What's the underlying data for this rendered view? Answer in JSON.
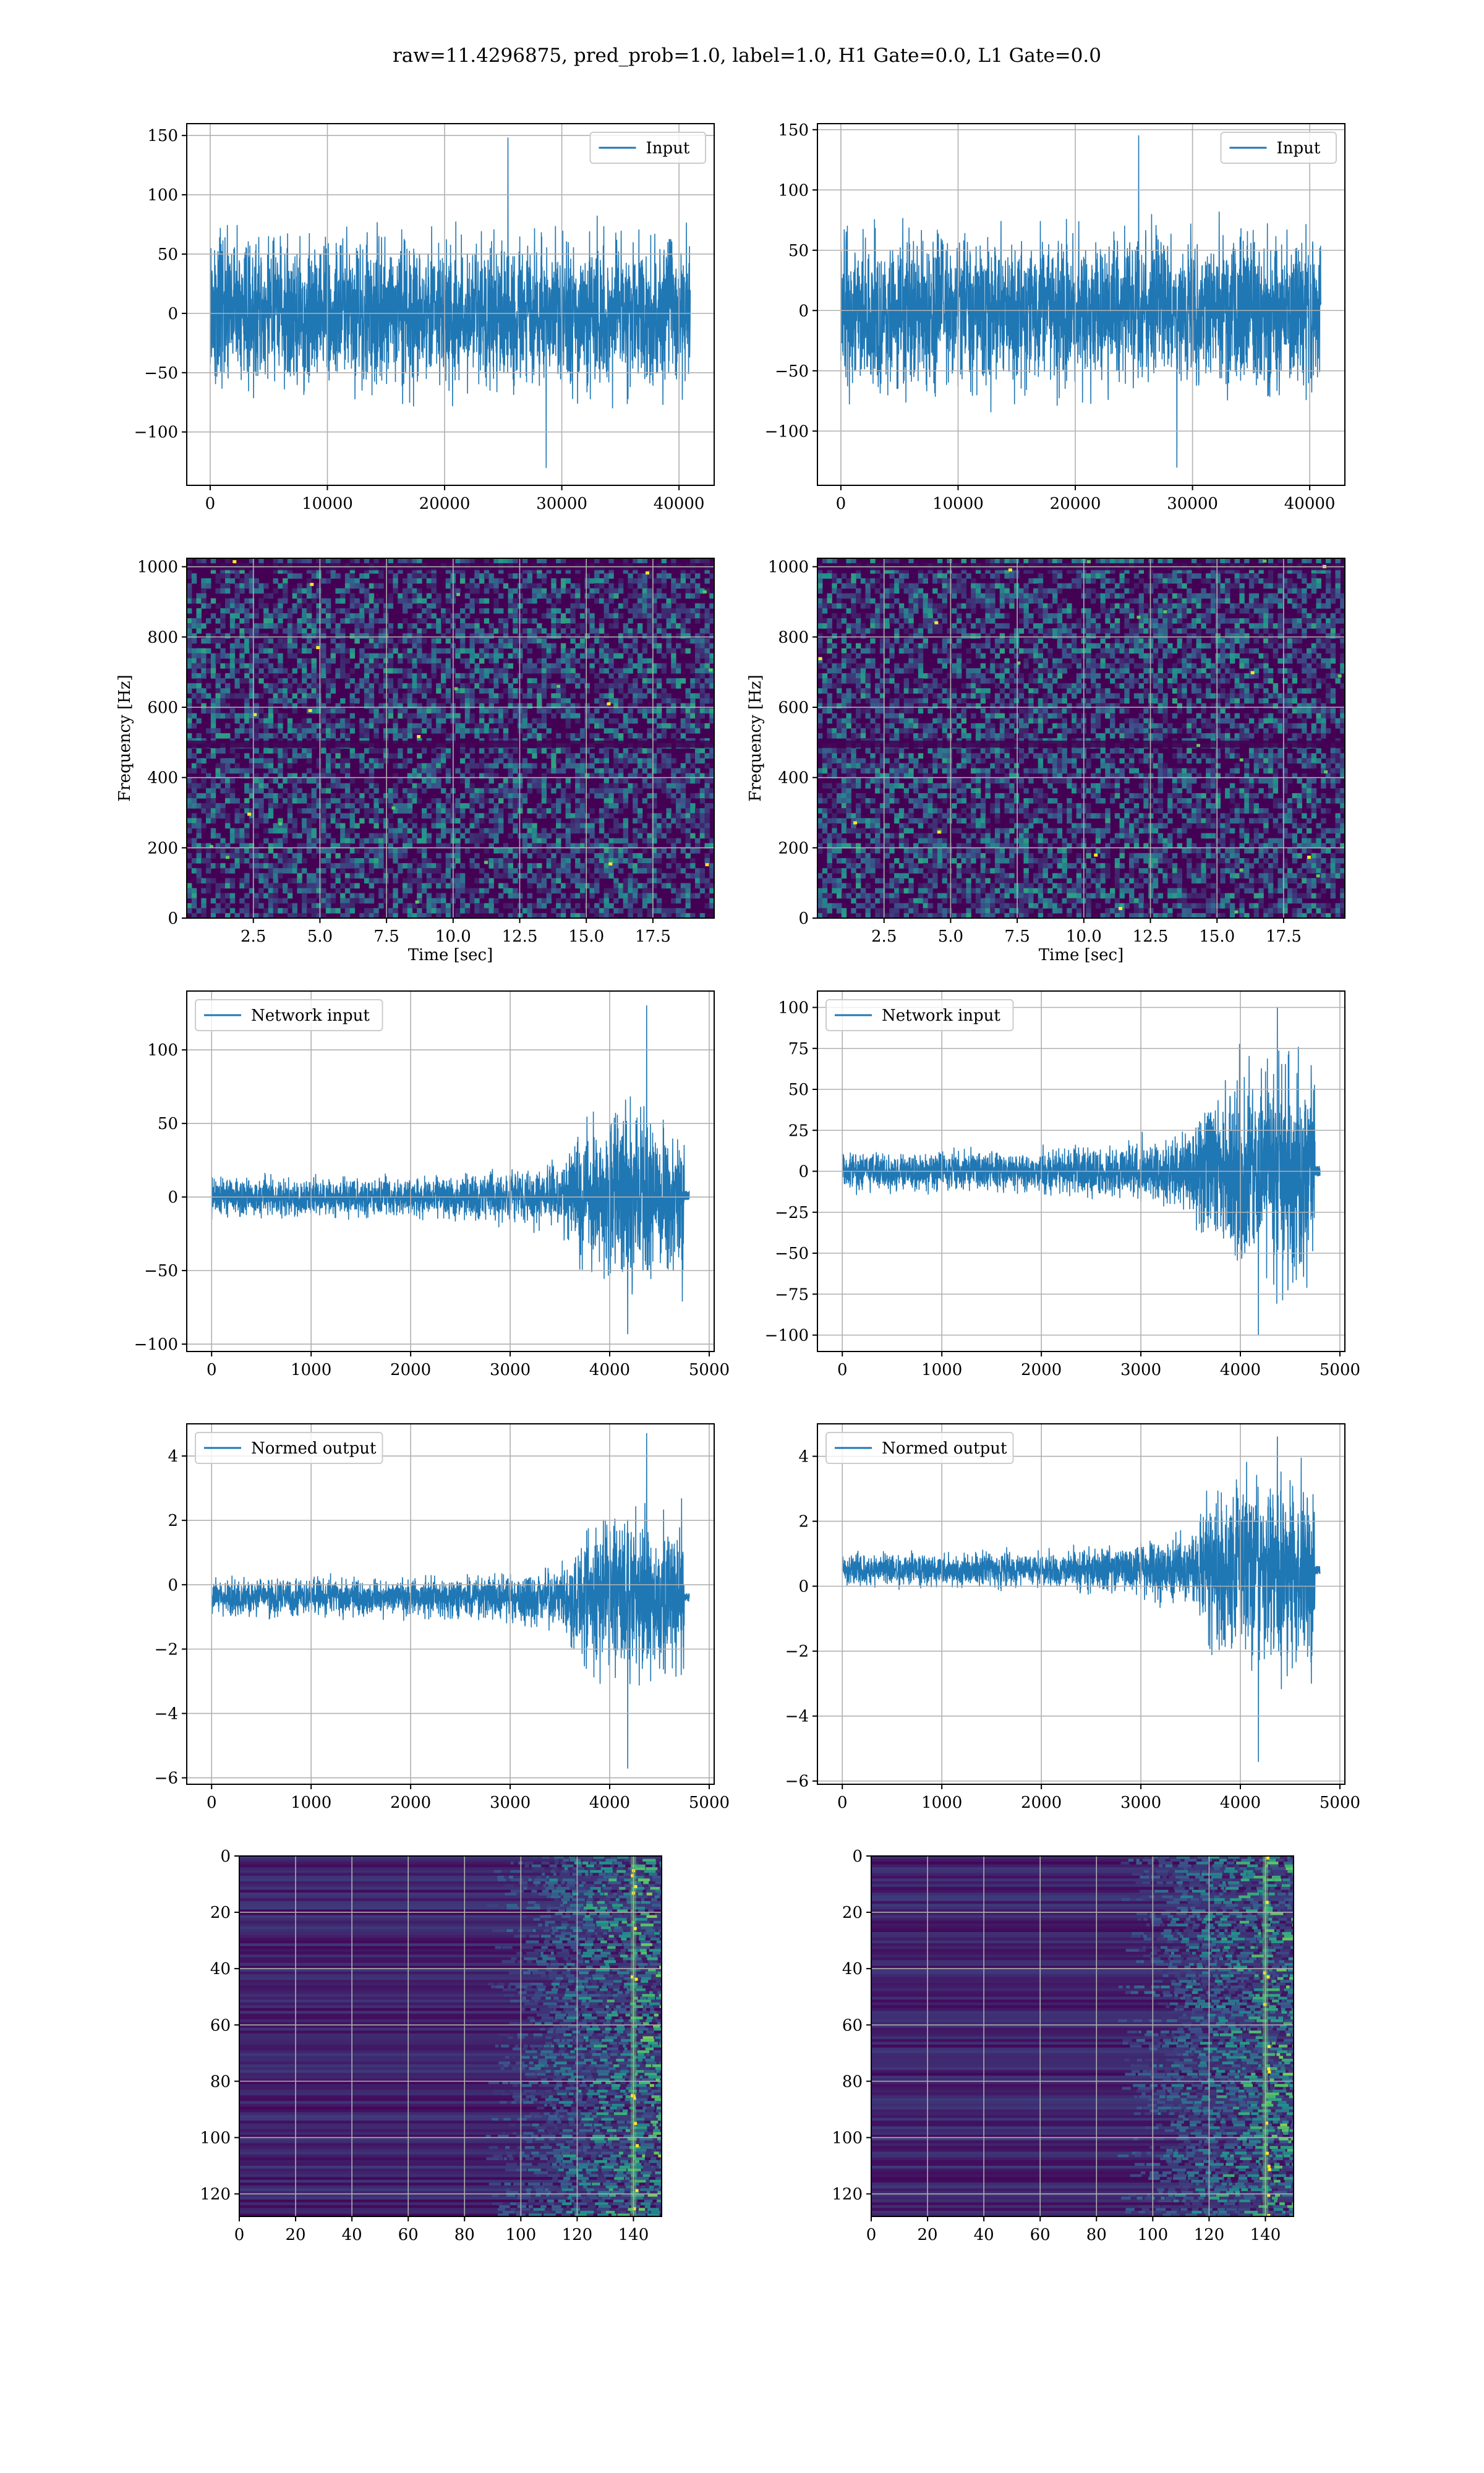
{
  "figure": {
    "suptitle": "raw=11.4296875, pred_prob=1.0, label=1.0, H1 Gate=0.0, L1 Gate=0.0"
  },
  "colors": {
    "line": "#1f77b4",
    "viridis_dark": "#440154",
    "viridis_mid": "#21918c",
    "viridis_light": "#5ec962",
    "viridis_bright": "#fde725",
    "grid": "#b0b0b0"
  },
  "chart_data": [
    {
      "id": "input-h1",
      "type": "line",
      "legend": "Input",
      "legend_loc": "upper-right",
      "grid": true,
      "xlim": [
        -2000,
        43000
      ],
      "ylim": [
        -145,
        160
      ],
      "xticks": [
        0,
        10000,
        20000,
        30000,
        40000
      ],
      "xtick_labels": [
        "0",
        "10000",
        "20000",
        "30000",
        "40000"
      ],
      "yticks": [
        -100,
        -50,
        0,
        50,
        100,
        150
      ],
      "ytick_labels": [
        "−100",
        "−50",
        "0",
        "50",
        "100",
        "150"
      ],
      "xlabel": "",
      "ylabel": "",
      "signal": {
        "x_range": [
          0,
          40960
        ],
        "envelope": [
          [
            0,
            85
          ],
          [
            40960,
            85
          ]
        ],
        "center": [
          [
            0,
            0
          ],
          [
            40960,
            0
          ]
        ],
        "peak_max": 148,
        "peak_min": -130
      }
    },
    {
      "id": "input-l1",
      "type": "line",
      "legend": "Input",
      "legend_loc": "upper-right",
      "grid": true,
      "xlim": [
        -2000,
        43000
      ],
      "ylim": [
        -145,
        155
      ],
      "xticks": [
        0,
        10000,
        20000,
        30000,
        40000
      ],
      "xtick_labels": [
        "0",
        "10000",
        "20000",
        "30000",
        "40000"
      ],
      "yticks": [
        -100,
        -50,
        0,
        50,
        100,
        150
      ],
      "ytick_labels": [
        "−100",
        "−50",
        "0",
        "50",
        "100",
        "150"
      ],
      "xlabel": "",
      "ylabel": "",
      "signal": {
        "x_range": [
          0,
          40960
        ],
        "envelope": [
          [
            0,
            85
          ],
          [
            40960,
            85
          ]
        ],
        "center": [
          [
            0,
            0
          ],
          [
            40960,
            0
          ]
        ],
        "peak_max": 145,
        "peak_min": -130
      }
    },
    {
      "id": "spectrogram-h1",
      "type": "heatmap",
      "grid": true,
      "xlim": [
        0,
        19.8
      ],
      "ylim": [
        0,
        1024
      ],
      "xticks": [
        2.5,
        5.0,
        7.5,
        10.0,
        12.5,
        15.0,
        17.5
      ],
      "xtick_labels": [
        "2.5",
        "5.0",
        "7.5",
        "10.0",
        "12.5",
        "15.0",
        "17.5"
      ],
      "yticks": [
        0,
        200,
        400,
        600,
        800,
        1000
      ],
      "ytick_labels": [
        "0",
        "200",
        "400",
        "600",
        "800",
        "1000"
      ],
      "xlabel": "Time [sec]",
      "ylabel": "Frequency [Hz]",
      "colormap": "viridis",
      "dark_bands_hz": [
        [
          485,
          505
        ],
        [
          990,
          1010
        ]
      ]
    },
    {
      "id": "spectrogram-l1",
      "type": "heatmap",
      "grid": true,
      "xlim": [
        0,
        19.8
      ],
      "ylim": [
        0,
        1024
      ],
      "xticks": [
        2.5,
        5.0,
        7.5,
        10.0,
        12.5,
        15.0,
        17.5
      ],
      "xtick_labels": [
        "2.5",
        "5.0",
        "7.5",
        "10.0",
        "12.5",
        "15.0",
        "17.5"
      ],
      "yticks": [
        0,
        200,
        400,
        600,
        800,
        1000
      ],
      "ytick_labels": [
        "0",
        "200",
        "400",
        "600",
        "800",
        "1000"
      ],
      "xlabel": "Time [sec]",
      "ylabel": "Frequency [Hz]",
      "colormap": "viridis",
      "dark_bands_hz": [
        [
          485,
          505
        ],
        [
          990,
          1010
        ]
      ]
    },
    {
      "id": "network-input-h1",
      "type": "line",
      "legend": "Network input",
      "legend_loc": "upper-left",
      "grid": true,
      "xlim": [
        -250,
        5050
      ],
      "ylim": [
        -105,
        140
      ],
      "xticks": [
        0,
        1000,
        2000,
        3000,
        4000,
        5000
      ],
      "xtick_labels": [
        "0",
        "1000",
        "2000",
        "3000",
        "4000",
        "5000"
      ],
      "yticks": [
        -100,
        -50,
        0,
        50,
        100
      ],
      "ytick_labels": [
        "−100",
        "−50",
        "0",
        "50",
        "100"
      ],
      "xlabel": "",
      "ylabel": "",
      "signal": {
        "x_range": [
          0,
          4750
        ],
        "envelope": [
          [
            0,
            17
          ],
          [
            2000,
            17
          ],
          [
            3000,
            22
          ],
          [
            3500,
            28
          ],
          [
            3700,
            55
          ],
          [
            4000,
            78
          ],
          [
            4400,
            72
          ],
          [
            4750,
            75
          ]
        ],
        "center": [
          [
            0,
            0
          ],
          [
            4750,
            0
          ]
        ],
        "peak_max": 130,
        "peak_min": -93,
        "tail": {
          "x_range": [
            4750,
            4800
          ],
          "center": 1,
          "amp": 3
        }
      }
    },
    {
      "id": "network-input-l1",
      "type": "line",
      "legend": "Network input",
      "legend_loc": "upper-left",
      "grid": true,
      "xlim": [
        -250,
        5050
      ],
      "ylim": [
        -110,
        110
      ],
      "xticks": [
        0,
        1000,
        2000,
        3000,
        4000,
        5000
      ],
      "xtick_labels": [
        "0",
        "1000",
        "2000",
        "3000",
        "4000",
        "5000"
      ],
      "yticks": [
        -100,
        -75,
        -50,
        -25,
        0,
        25,
        50,
        75,
        100
      ],
      "ytick_labels": [
        "−100",
        "−75",
        "−50",
        "−25",
        "0",
        "25",
        "50",
        "75",
        "100"
      ],
      "xlabel": "",
      "ylabel": "",
      "signal": {
        "x_range": [
          0,
          4750
        ],
        "envelope": [
          [
            0,
            15
          ],
          [
            2000,
            16
          ],
          [
            3000,
            24
          ],
          [
            3500,
            30
          ],
          [
            3700,
            62
          ],
          [
            4100,
            85
          ],
          [
            4500,
            90
          ],
          [
            4750,
            82
          ]
        ],
        "center": [
          [
            0,
            0
          ],
          [
            4750,
            0
          ]
        ],
        "peak_max": 100,
        "peak_min": -100,
        "tail": {
          "x_range": [
            4750,
            4800
          ],
          "center": 0,
          "amp": 3
        }
      }
    },
    {
      "id": "normed-output-h1",
      "type": "line",
      "legend": "Normed output",
      "legend_loc": "upper-left",
      "grid": true,
      "xlim": [
        -250,
        5050
      ],
      "ylim": [
        -6.2,
        5.0
      ],
      "xticks": [
        0,
        1000,
        2000,
        3000,
        4000,
        5000
      ],
      "xtick_labels": [
        "0",
        "1000",
        "2000",
        "3000",
        "4000",
        "5000"
      ],
      "yticks": [
        -6,
        -4,
        -2,
        0,
        2,
        4
      ],
      "ytick_labels": [
        "−6",
        "−4",
        "−2",
        "0",
        "2",
        "4"
      ],
      "xlabel": "",
      "ylabel": "",
      "signal": {
        "x_range": [
          0,
          4750
        ],
        "envelope": [
          [
            0,
            0.75
          ],
          [
            2000,
            0.75
          ],
          [
            3000,
            1.0
          ],
          [
            3500,
            1.3
          ],
          [
            3700,
            2.4
          ],
          [
            4000,
            3.3
          ],
          [
            4400,
            3.1
          ],
          [
            4750,
            3.2
          ]
        ],
        "center": [
          [
            0,
            -0.4
          ],
          [
            4750,
            -0.4
          ]
        ],
        "peak_max": 4.7,
        "peak_min": -5.7,
        "tail": {
          "x_range": [
            4750,
            4800
          ],
          "center": -0.4,
          "amp": 0.12
        }
      }
    },
    {
      "id": "normed-output-l1",
      "type": "line",
      "legend": "Normed output",
      "legend_loc": "upper-left",
      "grid": true,
      "xlim": [
        -250,
        5050
      ],
      "ylim": [
        -6.1,
        5.0
      ],
      "xticks": [
        0,
        1000,
        2000,
        3000,
        4000,
        5000
      ],
      "xtick_labels": [
        "0",
        "1000",
        "2000",
        "3000",
        "4000",
        "5000"
      ],
      "yticks": [
        -6,
        -4,
        -2,
        0,
        2,
        4
      ],
      "ytick_labels": [
        "−6",
        "−4",
        "−2",
        "0",
        "2",
        "4"
      ],
      "xlabel": "",
      "ylabel": "",
      "signal": {
        "x_range": [
          0,
          4750
        ],
        "envelope": [
          [
            0,
            0.65
          ],
          [
            2000,
            0.7
          ],
          [
            3000,
            1.05
          ],
          [
            3500,
            1.35
          ],
          [
            3700,
            2.8
          ],
          [
            4100,
            3.8
          ],
          [
            4500,
            4.0
          ],
          [
            4750,
            3.6
          ]
        ],
        "center": [
          [
            0,
            0.5
          ],
          [
            4750,
            0.5
          ]
        ],
        "peak_max": 4.6,
        "peak_min": -5.4,
        "tail": {
          "x_range": [
            4750,
            4800
          ],
          "center": 0.5,
          "amp": 0.12
        }
      }
    },
    {
      "id": "feature-map-h1",
      "type": "heatmap",
      "grid": true,
      "xlim": [
        0,
        150
      ],
      "ylim": [
        128,
        0
      ],
      "xticks": [
        0,
        20,
        40,
        60,
        80,
        100,
        120,
        140
      ],
      "xtick_labels": [
        "0",
        "20",
        "40",
        "60",
        "80",
        "100",
        "120",
        "140"
      ],
      "yticks": [
        0,
        20,
        40,
        60,
        80,
        100,
        120
      ],
      "ytick_labels": [
        "0",
        "20",
        "40",
        "60",
        "80",
        "100",
        "120"
      ],
      "xlabel": "",
      "ylabel": "",
      "colormap": "viridis",
      "activity_start_col": 95,
      "bright_col": 140
    },
    {
      "id": "feature-map-l1",
      "type": "heatmap",
      "grid": true,
      "xlim": [
        0,
        150
      ],
      "ylim": [
        128,
        0
      ],
      "xticks": [
        0,
        20,
        40,
        60,
        80,
        100,
        120,
        140
      ],
      "xtick_labels": [
        "0",
        "20",
        "40",
        "60",
        "80",
        "100",
        "120",
        "140"
      ],
      "yticks": [
        0,
        20,
        40,
        60,
        80,
        100,
        120
      ],
      "ytick_labels": [
        "0",
        "20",
        "40",
        "60",
        "80",
        "100",
        "120"
      ],
      "xlabel": "",
      "ylabel": "",
      "colormap": "viridis",
      "activity_start_col": 95,
      "bright_col": 140
    }
  ]
}
